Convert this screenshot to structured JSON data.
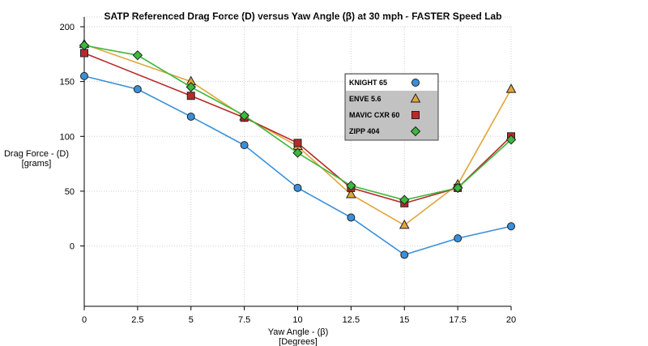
{
  "chart_data": {
    "type": "line",
    "title": "SATP Referenced Drag Force (D) versus Yaw Angle (β) at 30 mph - FASTER Speed Lab",
    "xlabel": [
      "Yaw Angle - (β)",
      "[Degrees]"
    ],
    "ylabel": [
      "Drag Force -  (D)",
      "[grams]"
    ],
    "x_ticks": [
      "0",
      "2.5",
      "5",
      "7.5",
      "10",
      "12.5",
      "15",
      "17.5",
      "20"
    ],
    "y_ticks": [
      "0",
      "50",
      "100",
      "150",
      "200"
    ],
    "xlim": [
      0,
      20
    ],
    "ylim": [
      -55,
      200
    ],
    "legend_position": "upper-right",
    "series": [
      {
        "name": "KNIGHT 65",
        "marker": "circle",
        "color": "#3a8fd9",
        "x": [
          0,
          2.5,
          5,
          7.5,
          10,
          12.5,
          15,
          17.5,
          20
        ],
        "y": [
          155,
          143,
          118,
          92,
          53,
          26,
          -8,
          7,
          18
        ]
      },
      {
        "name": "ENVE 5.6",
        "marker": "triangle",
        "color": "#e0a63a",
        "x": [
          0,
          5,
          7.5,
          10,
          12.5,
          15,
          17.5,
          20
        ],
        "y": [
          184,
          150,
          118,
          91,
          47,
          19,
          56,
          143
        ]
      },
      {
        "name": "MAVIC CXR 60",
        "marker": "square",
        "color": "#b82a2a",
        "x": [
          0,
          5,
          7.5,
          10,
          12.5,
          15,
          17.5,
          20
        ],
        "y": [
          176,
          137,
          117,
          94,
          53,
          39,
          53,
          100
        ]
      },
      {
        "name": "ZIPP 404",
        "marker": "diamond",
        "color": "#3cb83c",
        "x": [
          0,
          2.5,
          5,
          7.5,
          10,
          12.5,
          15,
          17.5,
          20
        ],
        "y": [
          183,
          174,
          145,
          119,
          85,
          55,
          42,
          53,
          97
        ]
      }
    ]
  }
}
